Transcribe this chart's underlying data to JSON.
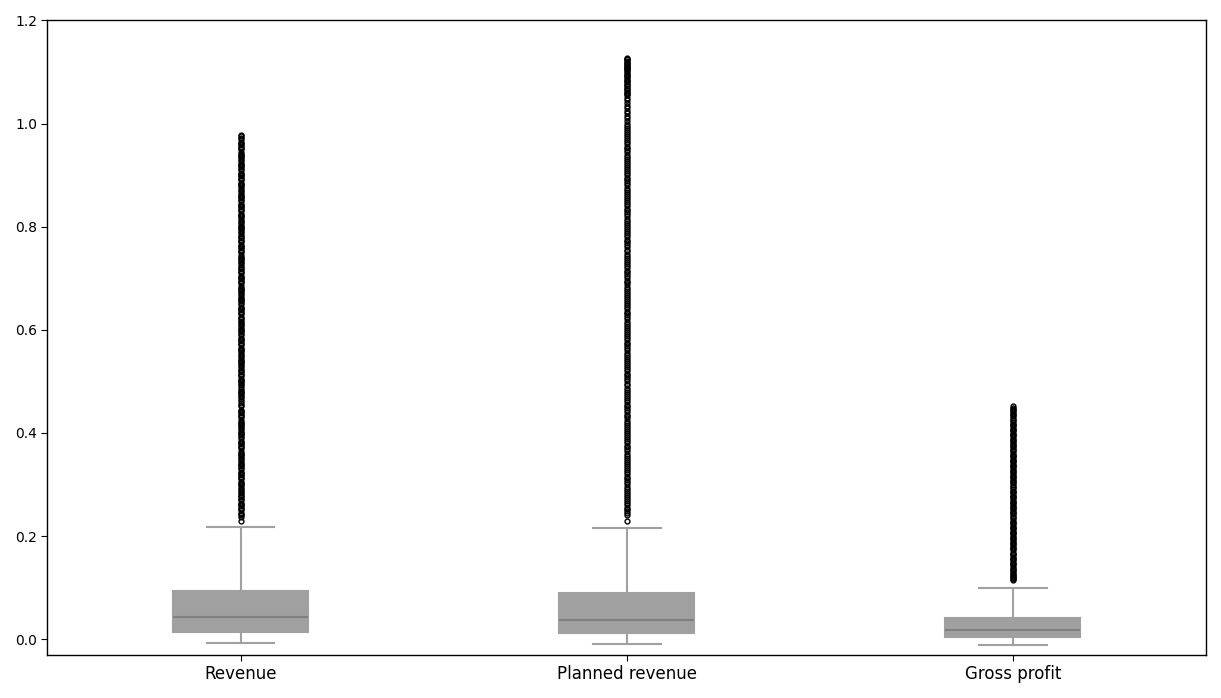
{
  "categories": [
    "Revenue",
    "Planned revenue",
    "Gross profit"
  ],
  "ylim": [
    -30000,
    1200000
  ],
  "box_stats": {
    "Revenue": {
      "med": 42000,
      "q1": 14000,
      "q3": 93000,
      "whislo": -8000,
      "whishi": 217000,
      "fliers_high": [
        230000,
        250000,
        270000,
        290000,
        310000,
        330000,
        350000,
        370000,
        390000,
        410000,
        430000,
        455000,
        475000,
        495000,
        515000,
        535000,
        555000,
        575000,
        595000,
        615000,
        635000,
        655000,
        675000,
        695000,
        715000,
        735000,
        755000,
        775000,
        795000,
        815000,
        835000,
        855000,
        875000,
        895000,
        915000,
        935000,
        955000,
        975000,
        240000,
        245000,
        255000,
        260000,
        265000,
        275000,
        280000,
        285000,
        295000,
        300000,
        305000,
        315000,
        320000,
        325000,
        335000,
        340000,
        345000,
        355000,
        360000,
        365000,
        375000,
        380000,
        385000,
        395000,
        400000,
        405000,
        415000,
        420000,
        425000,
        435000,
        440000,
        445000,
        465000,
        470000,
        480000,
        485000,
        490000,
        500000,
        505000,
        510000,
        520000,
        525000,
        530000,
        540000,
        545000,
        550000,
        560000,
        565000,
        570000,
        580000,
        585000,
        590000,
        600000,
        605000,
        610000,
        620000,
        625000,
        630000,
        640000,
        645000,
        650000,
        660000,
        665000,
        670000,
        680000,
        685000,
        690000,
        700000,
        705000,
        710000,
        720000,
        725000,
        730000,
        740000,
        745000,
        750000,
        760000,
        765000,
        770000,
        780000,
        785000,
        790000,
        800000,
        805000,
        810000,
        820000,
        825000,
        830000,
        840000,
        845000,
        850000,
        860000,
        865000,
        870000,
        880000,
        885000,
        890000,
        900000,
        905000,
        910000,
        920000,
        925000,
        930000,
        940000,
        945000,
        950000,
        960000,
        965000,
        970000,
        237000,
        243000,
        252000,
        258000,
        263000,
        272000,
        278000,
        283000,
        292000,
        298000,
        303000,
        312000,
        318000,
        322000,
        332000,
        338000,
        342000,
        352000,
        358000,
        362000,
        372000,
        378000,
        382000,
        392000,
        398000,
        402000,
        412000,
        418000,
        422000,
        432000,
        438000,
        442000,
        452000,
        458000,
        462000,
        472000,
        478000,
        482000,
        492000,
        498000,
        502000,
        512000,
        518000,
        522000,
        532000,
        538000,
        542000,
        552000,
        558000,
        562000,
        572000,
        578000,
        582000,
        592000,
        598000,
        602000,
        612000,
        618000,
        622000,
        632000,
        638000,
        642000,
        652000,
        658000,
        662000,
        672000,
        678000,
        682000,
        692000,
        698000,
        702000,
        712000,
        718000,
        722000,
        732000,
        738000,
        742000,
        752000,
        758000,
        762000,
        772000,
        778000,
        782000,
        792000,
        798000,
        802000,
        812000,
        818000,
        822000,
        832000,
        838000,
        842000,
        852000,
        858000,
        862000,
        872000,
        878000,
        882000,
        892000,
        898000,
        902000,
        912000,
        918000,
        922000,
        932000,
        938000,
        942000,
        952000,
        958000,
        962000,
        972000,
        978000
      ]
    },
    "Planned revenue": {
      "med": 38000,
      "q1": 12000,
      "q3": 90000,
      "whislo": -10000,
      "whishi": 215000,
      "fliers_high": [
        230000,
        255000,
        275000,
        295000,
        315000,
        335000,
        355000,
        375000,
        395000,
        415000,
        435000,
        455000,
        475000,
        495000,
        515000,
        535000,
        555000,
        575000,
        595000,
        615000,
        635000,
        655000,
        675000,
        695000,
        715000,
        735000,
        755000,
        775000,
        795000,
        815000,
        835000,
        855000,
        875000,
        895000,
        915000,
        935000,
        955000,
        975000,
        995000,
        1010000,
        1030000,
        1050000,
        1060000,
        1065000,
        1070000,
        1075000,
        1080000,
        1085000,
        1090000,
        1095000,
        1100000,
        1105000,
        1108000,
        1112000,
        1116000,
        1120000,
        1125000,
        1128000,
        240000,
        248000,
        260000,
        268000,
        280000,
        288000,
        300000,
        308000,
        320000,
        328000,
        340000,
        348000,
        360000,
        368000,
        380000,
        388000,
        400000,
        408000,
        420000,
        428000,
        440000,
        448000,
        460000,
        468000,
        480000,
        488000,
        500000,
        508000,
        520000,
        528000,
        540000,
        548000,
        560000,
        568000,
        580000,
        588000,
        600000,
        608000,
        620000,
        628000,
        640000,
        648000,
        660000,
        668000,
        680000,
        688000,
        700000,
        708000,
        720000,
        728000,
        740000,
        748000,
        760000,
        768000,
        780000,
        788000,
        800000,
        808000,
        820000,
        828000,
        840000,
        848000,
        860000,
        868000,
        880000,
        888000,
        900000,
        908000,
        920000,
        928000,
        940000,
        948000,
        960000,
        968000,
        980000,
        988000,
        1000000,
        1005000,
        1015000,
        1020000,
        1025000,
        1035000,
        1040000,
        1045000,
        1055000,
        1058000,
        1062000,
        1067000,
        1072000,
        1077000,
        1082000,
        1087000,
        1092000,
        1097000,
        1102000,
        1106000,
        1110000,
        1114000,
        1118000,
        1122000,
        1126000,
        244000,
        252000,
        264000,
        272000,
        284000,
        292000,
        304000,
        312000,
        324000,
        332000,
        344000,
        352000,
        364000,
        372000,
        384000,
        392000,
        404000,
        412000,
        424000,
        432000,
        444000,
        452000,
        464000,
        472000,
        484000,
        492000,
        504000,
        512000,
        524000,
        532000,
        544000,
        552000,
        564000,
        572000,
        584000,
        592000,
        604000,
        612000,
        624000,
        632000,
        644000,
        652000,
        664000,
        672000,
        684000,
        692000,
        704000,
        712000,
        724000,
        732000,
        744000,
        752000,
        764000,
        772000,
        784000,
        792000,
        804000,
        812000,
        824000,
        832000,
        844000,
        852000,
        864000,
        872000,
        884000,
        892000,
        904000,
        912000,
        924000,
        932000,
        944000,
        952000,
        964000,
        972000,
        984000,
        992000
      ]
    },
    "Gross profit": {
      "med": 18000,
      "q1": 5000,
      "q3": 40000,
      "whislo": -12000,
      "whishi": 100000,
      "fliers_high": [
        115000,
        125000,
        135000,
        145000,
        155000,
        165000,
        175000,
        185000,
        195000,
        205000,
        215000,
        225000,
        235000,
        245000,
        255000,
        265000,
        275000,
        285000,
        295000,
        305000,
        315000,
        325000,
        335000,
        345000,
        355000,
        365000,
        375000,
        385000,
        395000,
        405000,
        415000,
        425000,
        435000,
        445000,
        120000,
        128000,
        138000,
        148000,
        158000,
        168000,
        178000,
        188000,
        198000,
        208000,
        218000,
        228000,
        238000,
        248000,
        258000,
        268000,
        278000,
        288000,
        298000,
        308000,
        318000,
        328000,
        338000,
        348000,
        358000,
        368000,
        378000,
        388000,
        398000,
        408000,
        418000,
        428000,
        438000,
        448000,
        118000,
        122000,
        132000,
        142000,
        152000,
        162000,
        172000,
        182000,
        192000,
        202000,
        212000,
        222000,
        232000,
        242000,
        252000,
        262000,
        272000,
        282000,
        292000,
        302000,
        312000,
        322000,
        332000,
        342000,
        352000,
        362000,
        372000,
        382000,
        392000,
        402000,
        412000,
        422000,
        432000,
        442000,
        452000,
        116000,
        126000,
        136000,
        146000,
        156000,
        166000,
        176000,
        186000,
        196000,
        206000,
        216000,
        226000,
        236000,
        246000,
        256000,
        266000,
        276000,
        286000,
        296000,
        306000,
        316000,
        326000,
        336000,
        346000,
        356000,
        366000,
        376000,
        386000,
        396000,
        406000,
        416000,
        426000,
        436000,
        446000
      ]
    }
  },
  "box_color": "#d3d3d3",
  "median_color": "#808080",
  "whisker_color": "#a0a0a0",
  "cap_color": "#a0a0a0",
  "flier_color": "black",
  "flier_marker": "o",
  "flier_markersize": 3.5,
  "background_color": "white",
  "figsize": [
    12.21,
    6.98
  ],
  "dpi": 100
}
